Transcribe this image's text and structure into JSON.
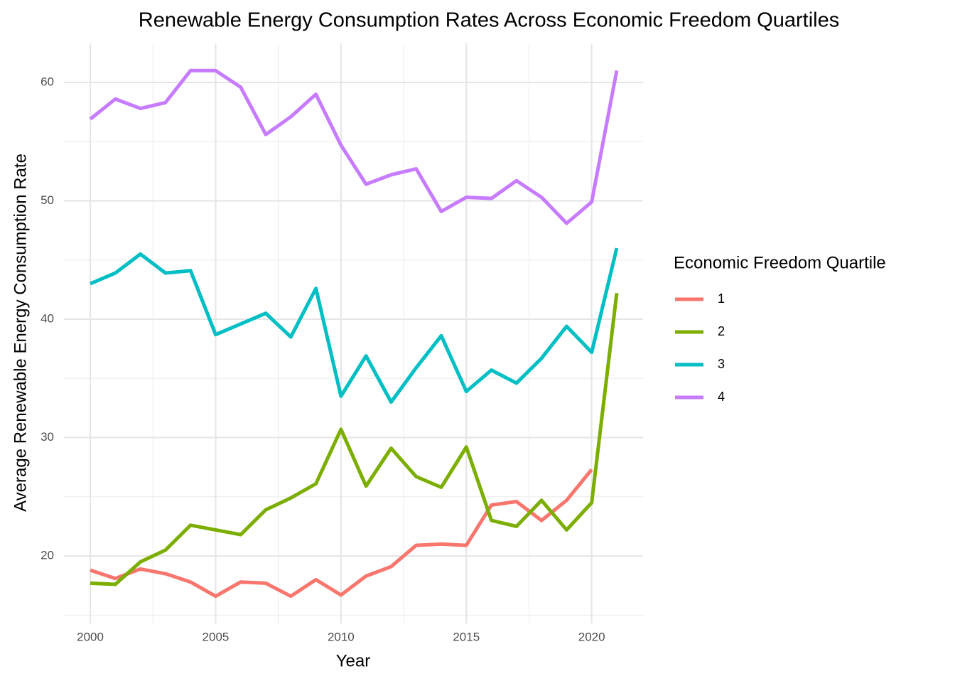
{
  "chart_data": {
    "type": "line",
    "title": "Renewable Energy Consumption Rates Across Economic Freedom Quartiles",
    "x_label": "Year",
    "y_label": "Average Renewable Energy Consumption Rate",
    "legend_title": "Economic Freedom Quartile",
    "legend_position": "right",
    "grid": true,
    "x": [
      2000,
      2001,
      2002,
      2003,
      2004,
      2005,
      2006,
      2007,
      2008,
      2009,
      2010,
      2011,
      2012,
      2013,
      2014,
      2015,
      2016,
      2017,
      2018,
      2019,
      2020,
      2021
    ],
    "series": [
      {
        "name": "1",
        "color": "#F8766D",
        "values": [
          18.8,
          18.1,
          18.9,
          18.5,
          17.8,
          16.6,
          17.8,
          17.7,
          16.6,
          18.0,
          16.7,
          18.3,
          19.1,
          20.9,
          21.0,
          20.9,
          24.3,
          24.6,
          23.0,
          24.7,
          27.3,
          null
        ]
      },
      {
        "name": "2",
        "color": "#7CAE00",
        "values": [
          17.7,
          17.6,
          19.5,
          20.5,
          22.6,
          22.2,
          21.8,
          23.9,
          24.9,
          26.1,
          30.7,
          25.9,
          29.1,
          26.7,
          25.8,
          29.2,
          23.0,
          22.5,
          24.7,
          22.2,
          24.5,
          42.2
        ]
      },
      {
        "name": "3",
        "color": "#00BFC4",
        "values": [
          43.0,
          43.9,
          45.5,
          43.9,
          44.1,
          38.7,
          39.6,
          40.5,
          38.5,
          42.6,
          33.5,
          36.9,
          33.0,
          35.9,
          38.6,
          33.9,
          35.7,
          34.6,
          36.7,
          39.4,
          37.2,
          46.0
        ]
      },
      {
        "name": "4",
        "color": "#C77CFF",
        "values": [
          56.9,
          58.6,
          57.8,
          58.3,
          61.0,
          61.0,
          59.6,
          55.6,
          57.1,
          59.0,
          54.7,
          51.4,
          52.2,
          52.7,
          49.1,
          50.3,
          50.2,
          51.7,
          50.3,
          48.1,
          49.9,
          61.0
        ]
      }
    ],
    "xlim": [
      1998.95,
      2022.05
    ],
    "xticks": [
      2000,
      2005,
      2010,
      2015,
      2020
    ],
    "x_minor_ticks": [
      2002.5,
      2007.5,
      2012.5,
      2017.5
    ],
    "ylim": [
      14.3,
      63.3
    ],
    "yticks": [
      20,
      30,
      40,
      50,
      60
    ],
    "y_minor_ticks": [
      15,
      25,
      35,
      45,
      55
    ]
  }
}
